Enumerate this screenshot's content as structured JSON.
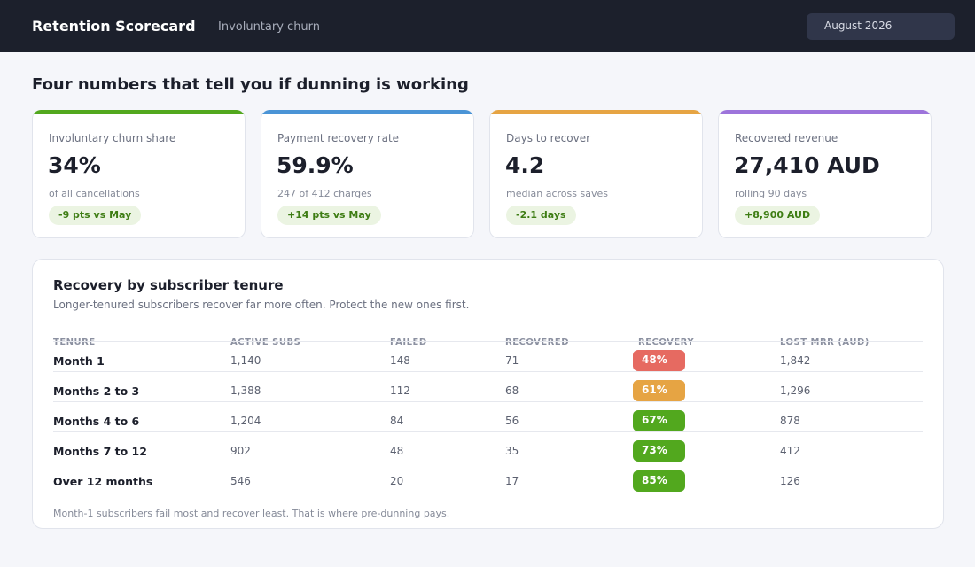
{
  "header": {
    "title": "Retention Scorecard",
    "subtitle": "Involuntary churn",
    "period": "August 2026"
  },
  "headline": "Four numbers that tell you if dunning is working",
  "kpis": [
    {
      "label": "Involuntary churn share",
      "value": "34%",
      "note": "of all cancellations",
      "delta": "-9 pts vs May",
      "accent": "#52a81e"
    },
    {
      "label": "Payment recovery rate",
      "value": "59.9%",
      "note": "247 of 412 charges",
      "delta": "+14 pts vs May",
      "accent": "#4a94d6"
    },
    {
      "label": "Days to recover",
      "value": "4.2",
      "note": "median across saves",
      "delta": "-2.1 days",
      "accent": "#e6a443"
    },
    {
      "label": "Recovered revenue",
      "value": "27,410 AUD",
      "note": "rolling 90 days",
      "delta": "+8,900 AUD",
      "accent": "#9d74db"
    }
  ],
  "table": {
    "title": "Recovery by subscriber tenure",
    "subtitle": "Longer-tenured subscribers recover far more often. Protect the new ones first.",
    "columns": [
      "TENURE",
      "ACTIVE SUBS",
      "FAILED",
      "RECOVERED",
      "RECOVERY",
      "LOST MRR (AUD)"
    ],
    "rows": [
      {
        "tenure": "Month 1",
        "active": "1,140",
        "failed": "148",
        "recovered": "71",
        "recovery": "48%",
        "lost": "1,842",
        "color": "#e66a61"
      },
      {
        "tenure": "Months 2 to 3",
        "active": "1,388",
        "failed": "112",
        "recovered": "68",
        "recovery": "61%",
        "lost": "1,296",
        "color": "#e6a443"
      },
      {
        "tenure": "Months 4 to 6",
        "active": "1,204",
        "failed": "84",
        "recovered": "56",
        "recovery": "67%",
        "lost": "878",
        "color": "#52a81e"
      },
      {
        "tenure": "Months 7 to 12",
        "active": "902",
        "failed": "48",
        "recovered": "35",
        "recovery": "73%",
        "lost": "412",
        "color": "#52a81e"
      },
      {
        "tenure": "Over 12 months",
        "active": "546",
        "failed": "20",
        "recovered": "17",
        "recovery": "85%",
        "lost": "126",
        "color": "#52a81e"
      }
    ],
    "footnote": "Month-1 subscribers fail most and recover least. That is where pre-dunning pays."
  }
}
